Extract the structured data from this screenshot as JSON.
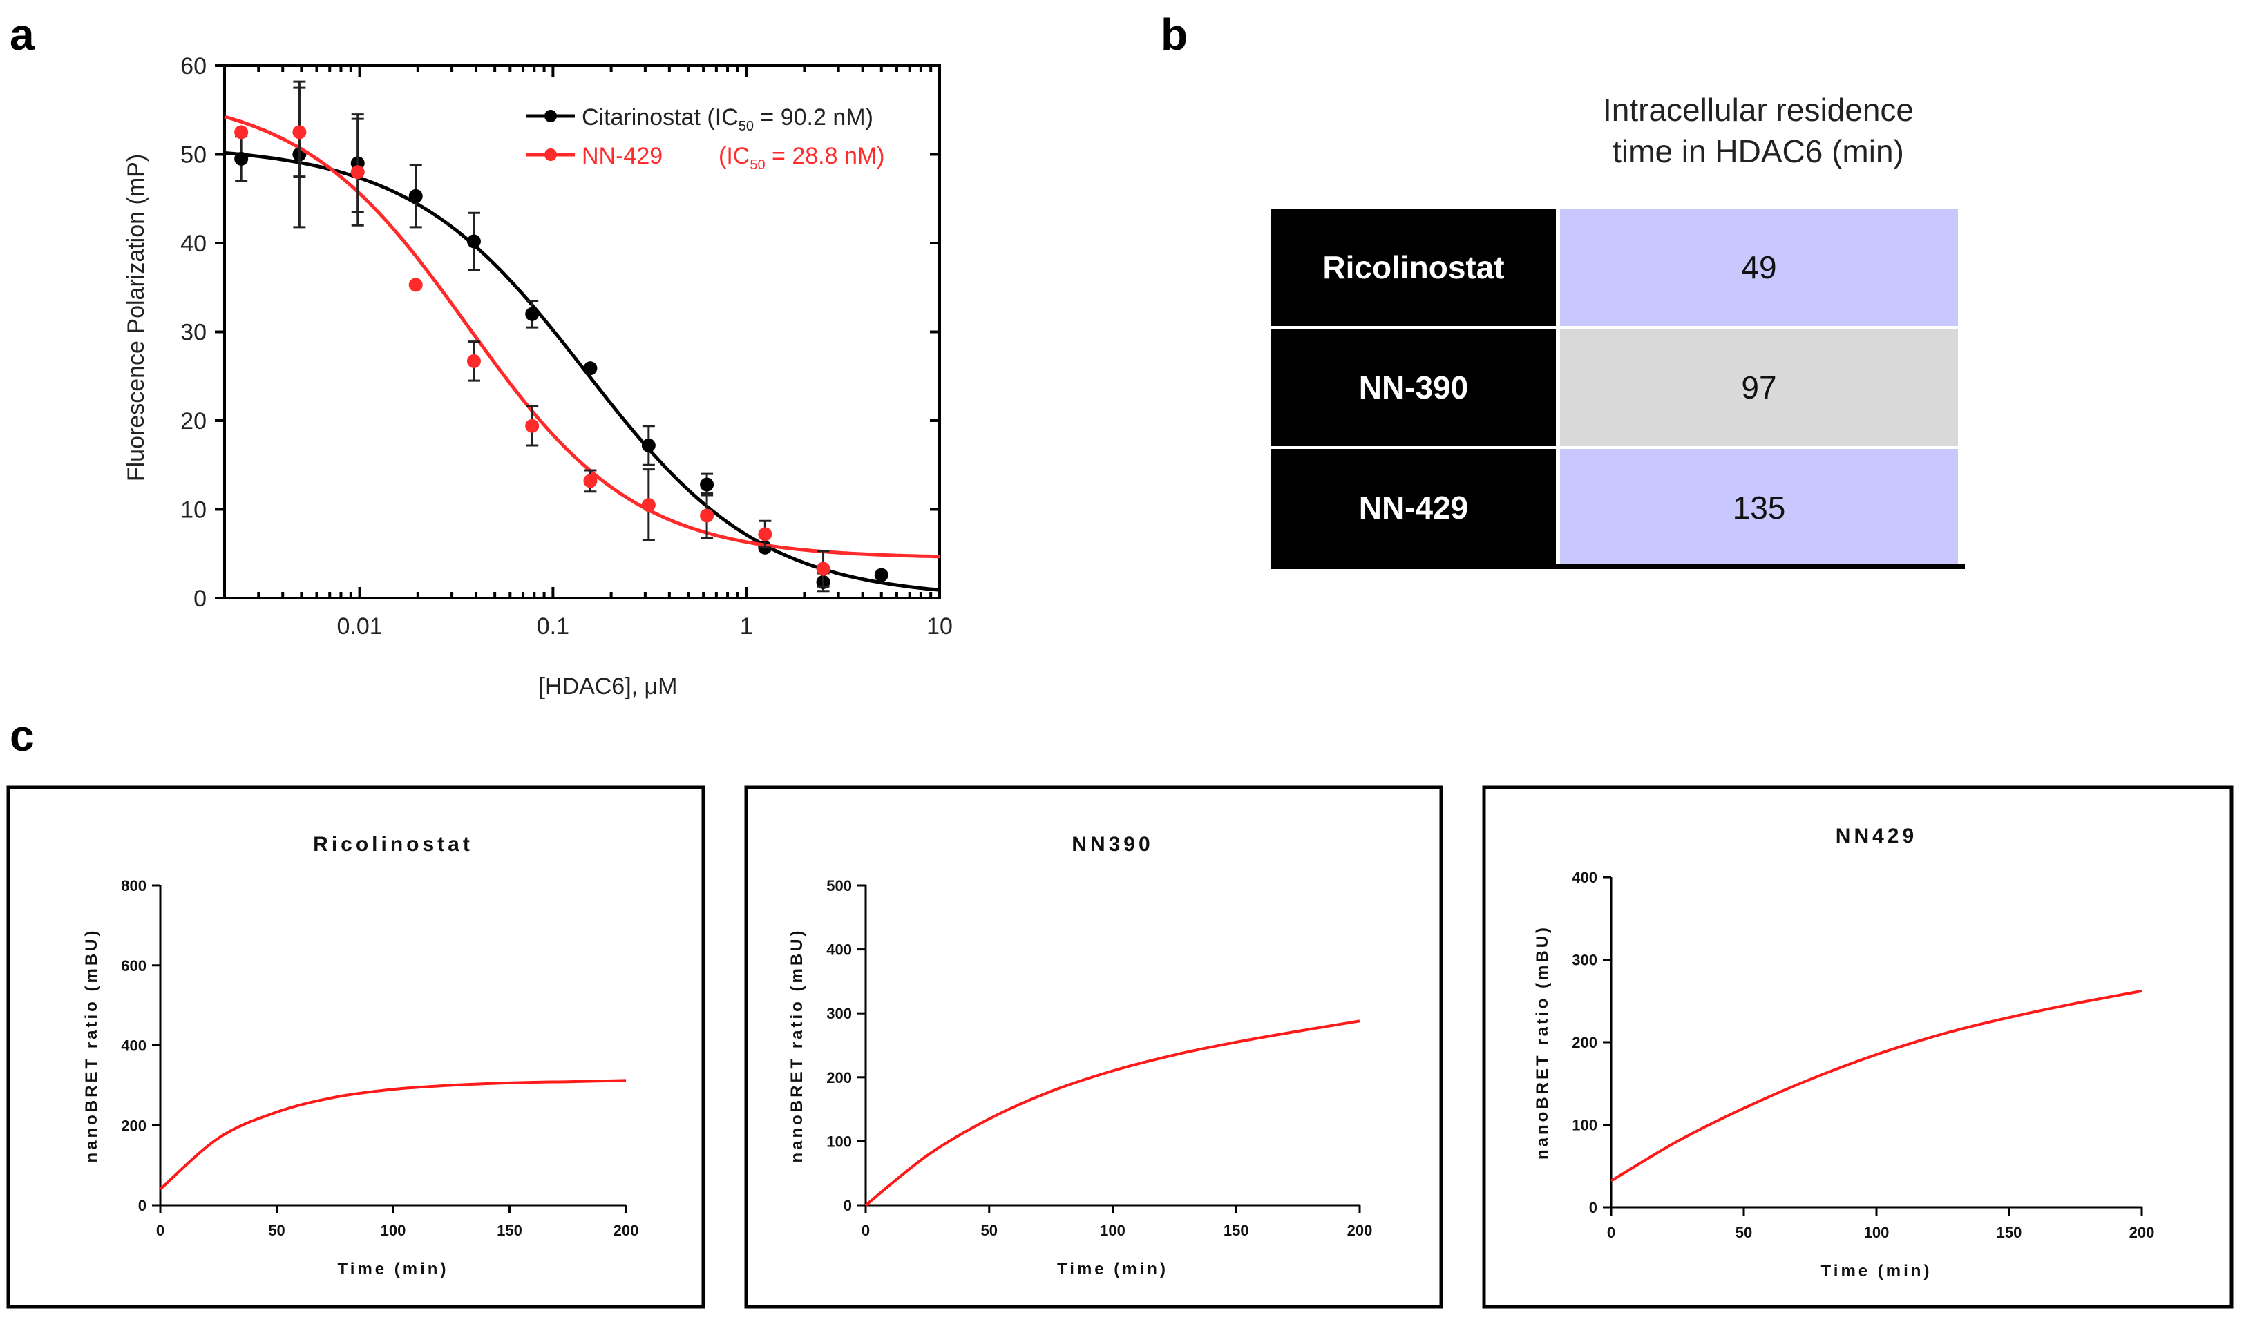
{
  "panel_labels": {
    "a": "a",
    "b": "b",
    "c": "c"
  },
  "colors": {
    "black_series": "#000000",
    "red_series": "#ff2a2a",
    "table_label_bg": "#000000",
    "value_bg_lavender": "#c8c8ff",
    "value_bg_gray": "#d9d9d9",
    "curve_red": "#ff1a1a"
  },
  "panel_a": {
    "legend": {
      "citarinostat": {
        "label": "Citarinostat (IC",
        "sub": "50",
        "tail": " = 90.2 nM)"
      },
      "nn429": {
        "label": "NN-429",
        "ic_pre": "(IC",
        "sub": "50",
        "tail": " = 28.8 nM)"
      }
    },
    "yaxis_title": "Fluorescence Polarization (mP)",
    "xaxis_title": "[HDAC6], μM"
  },
  "panel_b": {
    "header_line1": "Intracellular residence",
    "header_line2": "time in HDAC6 (min)",
    "rows": [
      {
        "label": "Ricolinostat",
        "value": "49"
      },
      {
        "label": "NN-390",
        "value": "97"
      },
      {
        "label": "NN-429",
        "value": "135"
      }
    ]
  },
  "chart_data": [
    {
      "type": "scatter",
      "panel": "a",
      "title": "",
      "xlabel": "[HDAC6], μM",
      "ylabel": "Fluorescence Polarization (mP)",
      "xscale": "log",
      "xlim": [
        0.002,
        10
      ],
      "ylim": [
        0,
        60
      ],
      "xticks": [
        0.01,
        0.1,
        1,
        10
      ],
      "xtick_labels": [
        "0.01",
        "0.1",
        "1",
        "10"
      ],
      "yticks": [
        0,
        10,
        20,
        30,
        40,
        50,
        60
      ],
      "ytick_labels": [
        "0",
        "10",
        "20",
        "30",
        "40",
        "50",
        "60"
      ],
      "legend_position": "top-right",
      "series": [
        {
          "name": "Citarinostat",
          "color": "#000000",
          "ic50_nM": 90.2,
          "x": [
            0.00244,
            0.00488,
            0.00977,
            0.0195,
            0.039,
            0.078,
            0.156,
            0.3125,
            0.625,
            1.25,
            2.5,
            5.0
          ],
          "y": [
            49.5,
            50.0,
            49.0,
            45.3,
            40.2,
            32.0,
            25.9,
            17.2,
            12.8,
            5.7,
            1.8,
            2.6
          ],
          "err": [
            2.5,
            8.2,
            5.5,
            3.5,
            3.2,
            1.5,
            0,
            2.2,
            1.2,
            0,
            1.0,
            0
          ],
          "fit": {
            "top": 51,
            "bottom": 0,
            "ic50": 0.148,
            "hill": 0.95
          }
        },
        {
          "name": "NN-429",
          "color": "#ff2a2a",
          "ic50_nM": 28.8,
          "x": [
            0.00244,
            0.00488,
            0.00977,
            0.0195,
            0.039,
            0.078,
            0.156,
            0.3125,
            0.625,
            1.25,
            2.5
          ],
          "y": [
            52.5,
            52.5,
            48.0,
            35.3,
            26.7,
            19.4,
            13.2,
            10.5,
            9.3,
            7.2,
            3.3
          ],
          "err": [
            0,
            5.0,
            6.0,
            0,
            2.2,
            2.2,
            1.2,
            4.0,
            2.5,
            1.5,
            2.0
          ],
          "fit": {
            "top": 57,
            "bottom": 4.5,
            "ic50": 0.036,
            "hill": 1.0
          }
        }
      ]
    },
    {
      "type": "line",
      "panel": "c",
      "title": "Ricolinostat",
      "xlabel": "Time (min)",
      "ylabel": "nanoBRET ratio (mBU)",
      "xlim": [
        0,
        200
      ],
      "ylim": [
        0,
        800
      ],
      "xticks": [
        0,
        50,
        100,
        150,
        200
      ],
      "yticks": [
        0,
        200,
        400,
        600,
        800
      ],
      "series": [
        {
          "name": "fit",
          "x": [
            0,
            25,
            50,
            75,
            100,
            125,
            150,
            175,
            200
          ],
          "y": [
            40,
            168,
            233,
            270,
            290,
            300,
            306,
            309,
            312
          ]
        }
      ]
    },
    {
      "type": "line",
      "panel": "c",
      "title": "NN390",
      "xlabel": "Time (min)",
      "ylabel": "nanoBRET ratio (mBU)",
      "xlim": [
        0,
        200
      ],
      "ylim": [
        0,
        500
      ],
      "xticks": [
        0,
        50,
        100,
        150,
        200
      ],
      "yticks": [
        0,
        100,
        200,
        300,
        400,
        500
      ],
      "series": [
        {
          "name": "fit",
          "x": [
            0,
            25,
            50,
            75,
            100,
            125,
            150,
            175,
            200
          ],
          "y": [
            0,
            78,
            135,
            178,
            210,
            235,
            255,
            272,
            288
          ]
        }
      ]
    },
    {
      "type": "line",
      "panel": "c",
      "title": "NN429",
      "xlabel": "Time (min)",
      "ylabel": "nanoBRET ratio (mBU)",
      "xlim": [
        0,
        200
      ],
      "ylim": [
        0,
        400
      ],
      "xticks": [
        0,
        50,
        100,
        150,
        200
      ],
      "yticks": [
        0,
        100,
        200,
        300,
        400
      ],
      "series": [
        {
          "name": "fit",
          "x": [
            0,
            25,
            50,
            75,
            100,
            125,
            150,
            175,
            200
          ],
          "y": [
            32,
            80,
            120,
            155,
            185,
            210,
            230,
            247,
            262
          ]
        }
      ]
    }
  ]
}
